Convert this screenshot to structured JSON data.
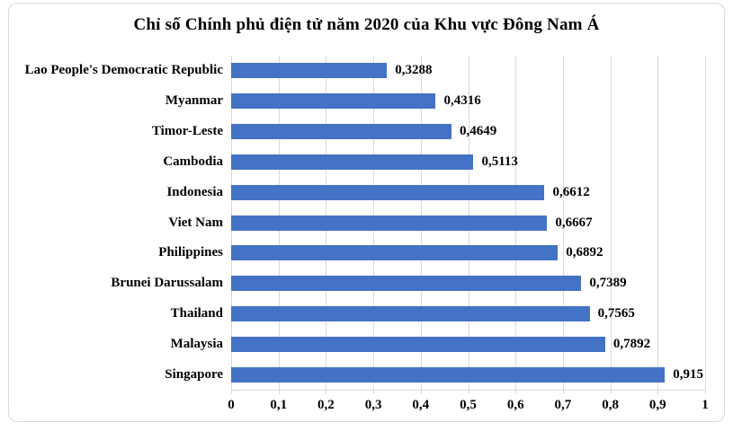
{
  "title": "Chỉ số Chính phủ điện tử năm 2020 của Khu vực Đông Nam Á",
  "chart_data": {
    "type": "bar",
    "orientation": "horizontal",
    "title": "Chỉ số Chính phủ điện tử năm 2020 của Khu vực Đông Nam Á",
    "categories": [
      "Lao People's Democratic Republic",
      "Myanmar",
      "Timor-Leste",
      "Cambodia",
      "Indonesia",
      "Viet Nam",
      "Philippines",
      "Brunei Darussalam",
      "Thailand",
      "Malaysia",
      "Singapore"
    ],
    "values": [
      0.3288,
      0.4316,
      0.4649,
      0.5113,
      0.6612,
      0.6667,
      0.6892,
      0.7389,
      0.7565,
      0.7892,
      0.915
    ],
    "value_labels": [
      "0,3288",
      "0,4316",
      "0,4649",
      "0,5113",
      "0,6612",
      "0,6667",
      "0,6892",
      "0,7389",
      "0,7565",
      "0,7892",
      "0,915"
    ],
    "x_tick_values": [
      0,
      0.1,
      0.2,
      0.3,
      0.4,
      0.5,
      0.6,
      0.7,
      0.8,
      0.9,
      1
    ],
    "x_tick_labels": [
      "0",
      "0,1",
      "0,2",
      "0,3",
      "0,4",
      "0,5",
      "0,6",
      "0,7",
      "0,8",
      "0,9",
      "1"
    ],
    "xlabel": "",
    "ylabel": "",
    "xlim": [
      0,
      1
    ],
    "grid": true,
    "legend": false,
    "colors": {
      "bar": "#4472C4",
      "gridline": "#D9D9D9",
      "frame_border": "#D9D9D9",
      "text": "#000000"
    }
  }
}
